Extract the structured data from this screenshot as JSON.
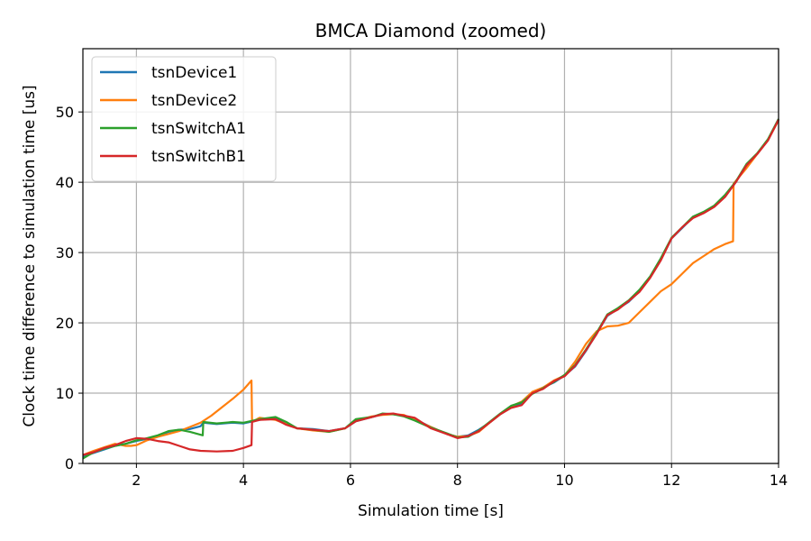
{
  "chart_data": {
    "type": "line",
    "title": "BMCA Diamond (zoomed)",
    "xlabel": "Simulation time [s]",
    "ylabel": "Clock time difference to simulation time [us]",
    "xlim": [
      1,
      14
    ],
    "ylim": [
      0,
      59
    ],
    "xticks": [
      2,
      4,
      6,
      8,
      10,
      12,
      14
    ],
    "yticks": [
      0,
      10,
      20,
      30,
      40,
      50
    ],
    "grid": true,
    "legend_position": "top-left",
    "series": [
      {
        "name": "tsnDevice1",
        "color": "#1f77b4",
        "points": [
          [
            1.0,
            1.0
          ],
          [
            1.2,
            1.5
          ],
          [
            1.4,
            2.0
          ],
          [
            1.6,
            2.5
          ],
          [
            1.8,
            2.8
          ],
          [
            2.0,
            3.2
          ],
          [
            2.2,
            3.5
          ],
          [
            2.4,
            3.8
          ],
          [
            2.6,
            4.5
          ],
          [
            2.8,
            4.8
          ],
          [
            3.0,
            4.9
          ],
          [
            3.2,
            5.3
          ],
          [
            3.25,
            5.8
          ],
          [
            3.5,
            5.6
          ],
          [
            3.8,
            5.8
          ],
          [
            4.0,
            5.7
          ],
          [
            4.3,
            6.2
          ],
          [
            4.6,
            6.5
          ],
          [
            4.8,
            5.8
          ],
          [
            5.0,
            5.0
          ],
          [
            5.3,
            4.9
          ],
          [
            5.6,
            4.6
          ],
          [
            5.9,
            5.0
          ],
          [
            6.1,
            6.0
          ],
          [
            6.4,
            6.6
          ],
          [
            6.6,
            7.0
          ],
          [
            6.8,
            7.0
          ],
          [
            7.0,
            6.8
          ],
          [
            7.2,
            6.3
          ],
          [
            7.5,
            5.2
          ],
          [
            7.8,
            4.2
          ],
          [
            8.0,
            3.8
          ],
          [
            8.2,
            4.0
          ],
          [
            8.4,
            4.8
          ],
          [
            8.6,
            5.8
          ],
          [
            8.8,
            7.0
          ],
          [
            9.0,
            8.0
          ],
          [
            9.2,
            8.5
          ],
          [
            9.4,
            10.0
          ],
          [
            9.6,
            10.8
          ],
          [
            9.8,
            11.5
          ],
          [
            10.0,
            12.5
          ],
          [
            10.2,
            13.8
          ],
          [
            10.4,
            16.0
          ],
          [
            10.6,
            18.5
          ],
          [
            10.8,
            21.0
          ],
          [
            11.0,
            22.0
          ],
          [
            11.2,
            23.0
          ],
          [
            11.4,
            24.5
          ],
          [
            11.6,
            26.5
          ],
          [
            11.8,
            29.0
          ],
          [
            12.0,
            32.0
          ],
          [
            12.2,
            33.5
          ],
          [
            12.4,
            35.0
          ],
          [
            12.6,
            35.7
          ],
          [
            12.8,
            36.6
          ],
          [
            13.0,
            38.0
          ],
          [
            13.2,
            40.0
          ],
          [
            13.4,
            42.5
          ],
          [
            13.6,
            44.0
          ],
          [
            13.8,
            46.0
          ],
          [
            14.0,
            49.0
          ]
        ]
      },
      {
        "name": "tsnDevice2",
        "color": "#ff7f0e",
        "points": [
          [
            1.0,
            1.2
          ],
          [
            1.2,
            1.8
          ],
          [
            1.4,
            2.3
          ],
          [
            1.6,
            2.8
          ],
          [
            1.8,
            2.5
          ],
          [
            1.9,
            2.5
          ],
          [
            2.0,
            2.6
          ],
          [
            2.2,
            3.3
          ],
          [
            2.4,
            3.8
          ],
          [
            2.6,
            4.2
          ],
          [
            2.8,
            4.6
          ],
          [
            3.0,
            5.2
          ],
          [
            3.2,
            5.8
          ],
          [
            3.4,
            6.8
          ],
          [
            3.6,
            8.0
          ],
          [
            3.8,
            9.2
          ],
          [
            4.0,
            10.5
          ],
          [
            4.15,
            11.8
          ],
          [
            4.16,
            5.9
          ],
          [
            4.3,
            6.5
          ],
          [
            4.6,
            6.2
          ],
          [
            4.8,
            5.6
          ],
          [
            5.0,
            5.0
          ],
          [
            5.3,
            4.7
          ],
          [
            5.6,
            4.5
          ],
          [
            5.9,
            5.0
          ],
          [
            6.1,
            6.1
          ],
          [
            6.4,
            6.7
          ],
          [
            6.6,
            6.9
          ],
          [
            6.8,
            7.0
          ],
          [
            7.0,
            6.9
          ],
          [
            7.2,
            6.2
          ],
          [
            7.5,
            5.2
          ],
          [
            7.8,
            4.2
          ],
          [
            8.0,
            3.8
          ],
          [
            8.2,
            3.9
          ],
          [
            8.4,
            4.5
          ],
          [
            8.6,
            5.8
          ],
          [
            8.8,
            7.0
          ],
          [
            9.0,
            8.1
          ],
          [
            9.2,
            8.8
          ],
          [
            9.4,
            10.2
          ],
          [
            9.6,
            10.8
          ],
          [
            9.8,
            11.8
          ],
          [
            10.0,
            12.5
          ],
          [
            10.2,
            14.5
          ],
          [
            10.4,
            17.0
          ],
          [
            10.6,
            18.8
          ],
          [
            10.8,
            19.5
          ],
          [
            11.0,
            19.6
          ],
          [
            11.2,
            20.0
          ],
          [
            11.4,
            21.5
          ],
          [
            11.6,
            23.0
          ],
          [
            11.8,
            24.5
          ],
          [
            12.0,
            25.5
          ],
          [
            12.2,
            27.0
          ],
          [
            12.4,
            28.5
          ],
          [
            12.6,
            29.5
          ],
          [
            12.8,
            30.5
          ],
          [
            13.0,
            31.2
          ],
          [
            13.15,
            31.6
          ],
          [
            13.16,
            39.8
          ],
          [
            13.4,
            42.0
          ],
          [
            13.6,
            44.0
          ],
          [
            13.8,
            46.0
          ],
          [
            14.0,
            48.8
          ]
        ]
      },
      {
        "name": "tsnSwitchA1",
        "color": "#2ca02c",
        "points": [
          [
            1.0,
            0.7
          ],
          [
            1.2,
            1.6
          ],
          [
            1.4,
            2.1
          ],
          [
            1.6,
            2.5
          ],
          [
            1.8,
            2.8
          ],
          [
            2.0,
            3.3
          ],
          [
            2.2,
            3.6
          ],
          [
            2.4,
            4.0
          ],
          [
            2.6,
            4.6
          ],
          [
            2.8,
            4.8
          ],
          [
            3.0,
            4.5
          ],
          [
            3.24,
            4.0
          ],
          [
            3.25,
            5.9
          ],
          [
            3.5,
            5.7
          ],
          [
            3.8,
            5.9
          ],
          [
            4.0,
            5.8
          ],
          [
            4.3,
            6.3
          ],
          [
            4.6,
            6.6
          ],
          [
            4.8,
            5.9
          ],
          [
            5.0,
            5.0
          ],
          [
            5.3,
            4.8
          ],
          [
            5.6,
            4.5
          ],
          [
            5.9,
            5.0
          ],
          [
            6.1,
            6.3
          ],
          [
            6.4,
            6.6
          ],
          [
            6.6,
            7.1
          ],
          [
            6.8,
            7.0
          ],
          [
            7.0,
            6.7
          ],
          [
            7.2,
            6.1
          ],
          [
            7.5,
            5.1
          ],
          [
            7.8,
            4.3
          ],
          [
            8.0,
            3.7
          ],
          [
            8.2,
            3.8
          ],
          [
            8.4,
            4.7
          ],
          [
            8.6,
            5.9
          ],
          [
            8.8,
            7.1
          ],
          [
            9.0,
            8.2
          ],
          [
            9.2,
            8.7
          ],
          [
            9.4,
            9.9
          ],
          [
            9.6,
            10.7
          ],
          [
            9.8,
            11.6
          ],
          [
            10.0,
            12.6
          ],
          [
            10.2,
            14.0
          ],
          [
            10.4,
            16.2
          ],
          [
            10.6,
            18.6
          ],
          [
            10.8,
            21.2
          ],
          [
            11.0,
            22.1
          ],
          [
            11.2,
            23.2
          ],
          [
            11.4,
            24.7
          ],
          [
            11.6,
            26.6
          ],
          [
            11.8,
            29.2
          ],
          [
            12.0,
            32.1
          ],
          [
            12.2,
            33.6
          ],
          [
            12.4,
            35.1
          ],
          [
            12.6,
            35.8
          ],
          [
            12.8,
            36.7
          ],
          [
            13.0,
            38.2
          ],
          [
            13.2,
            40.1
          ],
          [
            13.4,
            42.6
          ],
          [
            13.6,
            44.1
          ],
          [
            13.8,
            46.1
          ],
          [
            14.0,
            49.0
          ]
        ]
      },
      {
        "name": "tsnSwitchB1",
        "color": "#d62728",
        "points": [
          [
            1.0,
            1.2
          ],
          [
            1.2,
            1.6
          ],
          [
            1.4,
            2.2
          ],
          [
            1.6,
            2.6
          ],
          [
            1.8,
            3.2
          ],
          [
            2.0,
            3.6
          ],
          [
            2.2,
            3.5
          ],
          [
            2.4,
            3.2
          ],
          [
            2.6,
            3.0
          ],
          [
            2.8,
            2.5
          ],
          [
            3.0,
            2.0
          ],
          [
            3.2,
            1.8
          ],
          [
            3.5,
            1.7
          ],
          [
            3.8,
            1.8
          ],
          [
            4.0,
            2.2
          ],
          [
            4.15,
            2.6
          ],
          [
            4.16,
            5.9
          ],
          [
            4.3,
            6.2
          ],
          [
            4.6,
            6.3
          ],
          [
            4.8,
            5.5
          ],
          [
            5.0,
            5.0
          ],
          [
            5.3,
            4.8
          ],
          [
            5.6,
            4.6
          ],
          [
            5.9,
            5.0
          ],
          [
            6.1,
            6.0
          ],
          [
            6.4,
            6.6
          ],
          [
            6.6,
            7.0
          ],
          [
            6.8,
            7.1
          ],
          [
            7.0,
            6.8
          ],
          [
            7.2,
            6.5
          ],
          [
            7.5,
            5.0
          ],
          [
            7.8,
            4.2
          ],
          [
            8.0,
            3.6
          ],
          [
            8.2,
            3.9
          ],
          [
            8.4,
            4.6
          ],
          [
            8.6,
            5.8
          ],
          [
            8.8,
            7.0
          ],
          [
            9.0,
            7.9
          ],
          [
            9.2,
            8.3
          ],
          [
            9.4,
            10.0
          ],
          [
            9.6,
            10.6
          ],
          [
            9.8,
            11.7
          ],
          [
            10.0,
            12.4
          ],
          [
            10.2,
            13.9
          ],
          [
            10.4,
            16.1
          ],
          [
            10.6,
            18.4
          ],
          [
            10.8,
            21.1
          ],
          [
            11.0,
            21.9
          ],
          [
            11.2,
            23.1
          ],
          [
            11.4,
            24.4
          ],
          [
            11.6,
            26.4
          ],
          [
            11.8,
            28.9
          ],
          [
            12.0,
            32.0
          ],
          [
            12.2,
            33.6
          ],
          [
            12.4,
            34.9
          ],
          [
            12.6,
            35.6
          ],
          [
            12.8,
            36.5
          ],
          [
            13.0,
            37.9
          ],
          [
            13.2,
            40.0
          ],
          [
            13.4,
            42.4
          ],
          [
            13.6,
            44.0
          ],
          [
            13.8,
            45.9
          ],
          [
            14.0,
            48.9
          ]
        ]
      }
    ]
  }
}
